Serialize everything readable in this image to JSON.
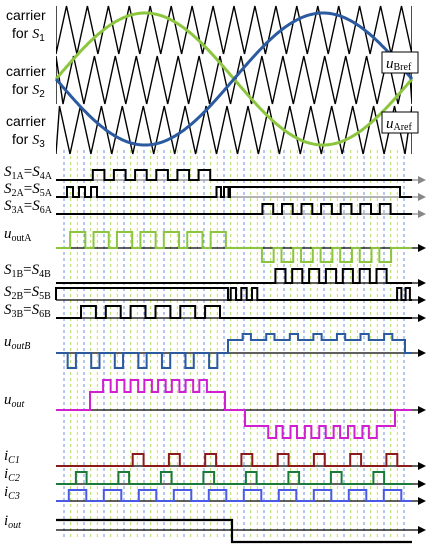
{
  "carrier_labels": [
    {
      "line1": "carrier",
      "line2": "for",
      "sym": "S",
      "sub": "1"
    },
    {
      "line1": "carrier",
      "line2": "for",
      "sym": "S",
      "sub": "2"
    },
    {
      "line1": "carrier",
      "line2": "for",
      "sym": "S",
      "sub": "3"
    }
  ],
  "ref_labels": {
    "B": {
      "main": "u",
      "sub": "Bref"
    },
    "A": {
      "main": "u",
      "sub": "Aref"
    }
  },
  "signals": [
    {
      "id": "s1a",
      "label": [
        {
          "t": "S",
          "i": true
        },
        {
          "t": "1A",
          "sub": true
        },
        {
          "t": "=",
          "i": false
        },
        {
          "t": "S",
          "i": true
        },
        {
          "t": "4A",
          "sub": true
        }
      ],
      "color": "#000000",
      "arrow": "#888888"
    },
    {
      "id": "s2a",
      "label": [
        {
          "t": "S",
          "i": true
        },
        {
          "t": "2A",
          "sub": true
        },
        {
          "t": "=",
          "i": false
        },
        {
          "t": "S",
          "i": true
        },
        {
          "t": "5A",
          "sub": true
        }
      ],
      "color": "#000000",
      "arrow": "#888888"
    },
    {
      "id": "s3a",
      "label": [
        {
          "t": "S",
          "i": true
        },
        {
          "t": "3A",
          "sub": true
        },
        {
          "t": "=",
          "i": false
        },
        {
          "t": "S",
          "i": true
        },
        {
          "t": "6A",
          "sub": true
        }
      ],
      "color": "#000000",
      "arrow": "#888888"
    },
    {
      "id": "uouta",
      "label": [
        {
          "t": "u",
          "i": true
        },
        {
          "t": "outA",
          "sub": true
        }
      ],
      "color": "#8cc63f",
      "arrow": "#000000"
    },
    {
      "id": "s1b",
      "label": [
        {
          "t": "S",
          "i": true
        },
        {
          "t": "1B",
          "sub": true
        },
        {
          "t": "=",
          "i": false
        },
        {
          "t": "S",
          "i": true
        },
        {
          "t": "4B",
          "sub": true
        }
      ],
      "color": "#000000",
      "arrow": "#000000"
    },
    {
      "id": "s2b",
      "label": [
        {
          "t": "S",
          "i": true
        },
        {
          "t": "2B",
          "sub": true
        },
        {
          "t": "=",
          "i": false
        },
        {
          "t": "S",
          "i": true
        },
        {
          "t": "5B",
          "sub": true
        }
      ],
      "color": "#000000",
      "arrow": "#000000"
    },
    {
      "id": "s3b",
      "label": [
        {
          "t": "S",
          "i": true
        },
        {
          "t": "3B",
          "sub": true
        },
        {
          "t": "=",
          "i": false
        },
        {
          "t": "S",
          "i": true
        },
        {
          "t": "6B",
          "sub": true
        }
      ],
      "color": "#000000",
      "arrow": "#000000"
    },
    {
      "id": "uoutb",
      "label": [
        {
          "t": "u",
          "i": true
        },
        {
          "t": "outB",
          "sub": true,
          "si": true
        }
      ],
      "color": "#2b5aa0",
      "arrow": "#000000"
    },
    {
      "id": "uout",
      "label": [
        {
          "t": "u",
          "i": true
        },
        {
          "t": "out",
          "sub": true,
          "si": true
        }
      ],
      "color": "#d020d0",
      "arrow": "#000000"
    },
    {
      "id": "ic1",
      "label": [
        {
          "t": "i",
          "i": true
        },
        {
          "t": "C1",
          "sub": true,
          "si": true
        }
      ],
      "color": "#8b1a1a",
      "arrow": "#000000"
    },
    {
      "id": "ic2",
      "label": [
        {
          "t": "i",
          "i": true
        },
        {
          "t": "C2",
          "sub": true,
          "si": true
        }
      ],
      "color": "#1a7a3a",
      "arrow": "#000000"
    },
    {
      "id": "ic3",
      "label": [
        {
          "t": "i",
          "i": true
        },
        {
          "t": "C3",
          "sub": true,
          "si": true
        }
      ],
      "color": "#4a5ae8",
      "arrow": "#000000"
    },
    {
      "id": "iout",
      "label": [
        {
          "t": "i",
          "i": true
        },
        {
          "t": "out",
          "sub": true,
          "si": true
        }
      ],
      "color": "#000000",
      "arrow": "#000000"
    }
  ],
  "colors": {
    "carrier": "#000000",
    "ref_a": "#2b5aa0",
    "ref_b": "#8cc63f",
    "grid_blue": "#3a6fd0",
    "grid_green": "#9acd32",
    "grid_yellow": "#d8c800"
  }
}
